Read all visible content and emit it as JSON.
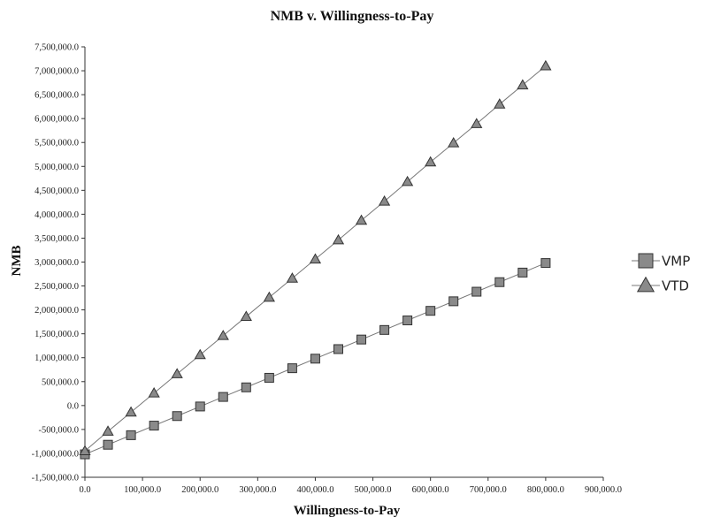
{
  "chart_data": {
    "type": "line",
    "title": "NMB v. Willingness-to-Pay",
    "xlabel": "Willingness-to-Pay",
    "ylabel": "NMB",
    "xlim": [
      0,
      900000
    ],
    "ylim": [
      -1500000,
      7500000
    ],
    "x_ticks": [
      "0.0",
      "100,000.0",
      "200,000.0",
      "300,000.0",
      "400,000.0",
      "500,000.0",
      "600,000.0",
      "700,000.0",
      "800,000.0",
      "900,000.0"
    ],
    "y_ticks": [
      "-1,500,000.0",
      "-1,000,000.0",
      "-500,000.0",
      "0.0",
      "500,000.0",
      "1,000,000.0",
      "1,500,000.0",
      "2,000,000.0",
      "2,500,000.0",
      "3,000,000.0",
      "3,500,000.0",
      "4,000,000.0",
      "4,500,000.0",
      "5,000,000.0",
      "5,500,000.0",
      "6,000,000.0",
      "6,500,000.0",
      "7,000,000.0",
      "7,500,000.0"
    ],
    "grid": false,
    "legend_position": "right",
    "series": [
      {
        "name": "VMP",
        "marker": "square",
        "color": "#8a8a8a",
        "x": [
          0,
          40000,
          80000,
          120000,
          160000,
          200000,
          240000,
          280000,
          320000,
          360000,
          400000,
          440000,
          480000,
          520000,
          560000,
          600000,
          640000,
          680000,
          720000,
          760000,
          800000
        ],
        "values": [
          -1020000,
          -820000,
          -620000,
          -420000,
          -220000,
          -20000,
          180000,
          380000,
          580000,
          780000,
          980000,
          1180000,
          1380000,
          1580000,
          1780000,
          1980000,
          2180000,
          2380000,
          2580000,
          2780000,
          2980000
        ]
      },
      {
        "name": "VTD",
        "marker": "triangle",
        "color": "#8a8a8a",
        "x": [
          0,
          40000,
          80000,
          120000,
          160000,
          200000,
          240000,
          280000,
          320000,
          360000,
          400000,
          440000,
          480000,
          520000,
          560000,
          600000,
          640000,
          680000,
          720000,
          760000,
          800000
        ],
        "values": [
          -950000,
          -540000,
          -140000,
          260000,
          660000,
          1060000,
          1460000,
          1860000,
          2260000,
          2660000,
          3060000,
          3460000,
          3870000,
          4270000,
          4680000,
          5090000,
          5490000,
          5890000,
          6300000,
          6700000,
          7100000
        ]
      }
    ]
  }
}
